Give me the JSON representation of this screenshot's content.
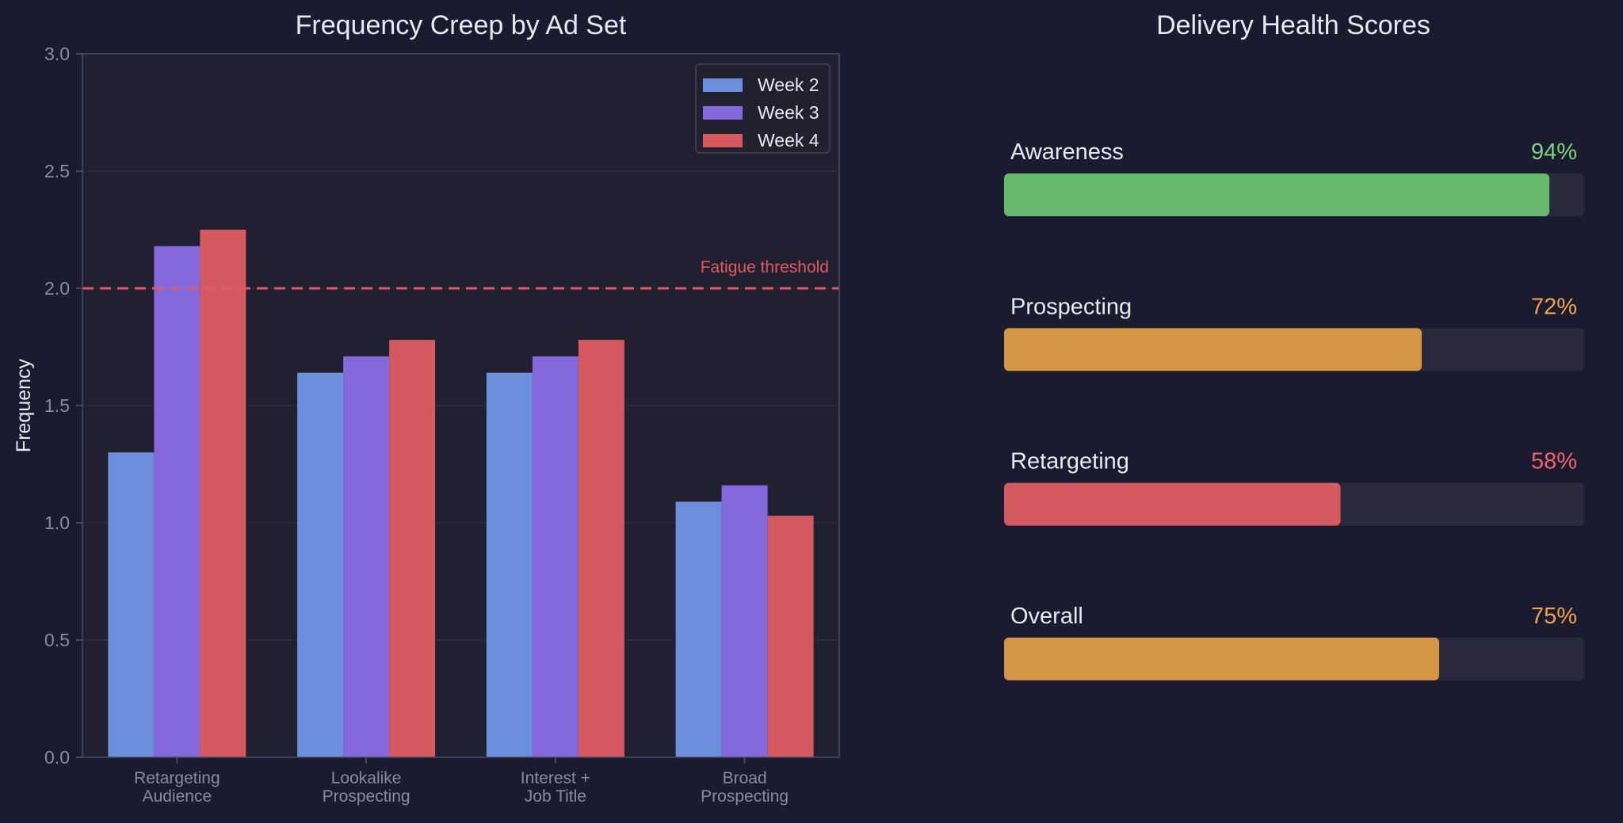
{
  "chart_data": [
    {
      "type": "bar",
      "title": "Frequency Creep by Ad Set",
      "xlabel": "",
      "ylabel": "Frequency",
      "ylim": [
        0,
        3.0
      ],
      "yticks": [
        "0.0",
        "0.5",
        "1.0",
        "1.5",
        "2.0",
        "2.5",
        "3.0"
      ],
      "categories": [
        [
          "Retargeting",
          "Audience"
        ],
        [
          "Lookalike",
          "Prospecting"
        ],
        [
          "Interest +",
          "Job Title"
        ],
        [
          "Broad",
          "Prospecting"
        ]
      ],
      "series": [
        {
          "name": "Week 2",
          "color": "#6b8fdb",
          "values": [
            1.3,
            1.64,
            1.64,
            1.09
          ]
        },
        {
          "name": "Week 3",
          "color": "#8468dc",
          "values": [
            2.18,
            1.71,
            1.71,
            1.16
          ]
        },
        {
          "name": "Week 4",
          "color": "#d45a5f",
          "values": [
            2.25,
            1.78,
            1.78,
            1.03
          ]
        }
      ],
      "threshold": {
        "value": 2.0,
        "label": "Fatigue threshold",
        "color": "#e05a5f"
      },
      "grid": true,
      "legend": "top-right"
    },
    {
      "type": "bar",
      "orientation": "horizontal",
      "title": "Delivery Health Scores",
      "items": [
        {
          "label": "Awareness",
          "value": 94,
          "display": "94%",
          "color": "#66b96b",
          "text_color": "#7bd47f"
        },
        {
          "label": "Prospecting",
          "value": 72,
          "display": "72%",
          "color": "#d49545",
          "text_color": "#f0a24d"
        },
        {
          "label": "Retargeting",
          "value": 58,
          "display": "58%",
          "color": "#d45a5f",
          "text_color": "#f06368"
        },
        {
          "label": "Overall",
          "value": 75,
          "display": "75%",
          "color": "#d49545",
          "text_color": "#f0a24d"
        }
      ],
      "max": 100
    }
  ],
  "colors": {
    "background": "#1b1b2f",
    "plot_background": "#202030",
    "track": "#2a2a3c"
  }
}
